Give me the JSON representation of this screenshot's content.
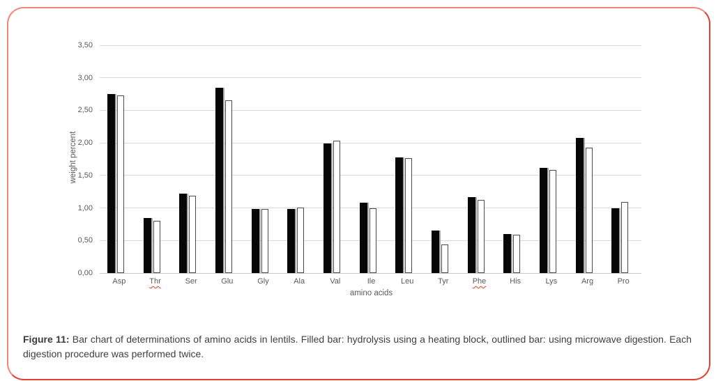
{
  "figure": {
    "caption_label": "Figure 11:",
    "caption_text": " Bar chart of determinations of amino acids in lentils. Filled bar: hydrolysis using a heating block, outlined bar: using microwave digestion. Each digestion procedure was performed twice."
  },
  "colors": {
    "frame_border_top_left": "#f2857a",
    "frame_border_bottom_right": "#e2402e",
    "filled_bar": "#070707",
    "outlined_bar_border": "#4a4a4a",
    "replicate_sliver": "#a8a8a8",
    "gridline": "#d9d9d9",
    "axis_text": "#595959",
    "caption_text": "#3f3f3f",
    "spellcheck_underline": "#e0392e"
  },
  "chart_data": {
    "type": "bar",
    "title": "",
    "xlabel": "amino acids",
    "ylabel": "weight percent",
    "categories": [
      "Asp",
      "Thr",
      "Ser",
      "Glu",
      "Gly",
      "Ala",
      "Val",
      "Ile",
      "Leu",
      "Tyr",
      "Phe",
      "His",
      "Lys",
      "Arg",
      "Pro"
    ],
    "series": [
      {
        "name": "hydrolysis using a heating block (filled bar)",
        "values": [
          2.75,
          0.85,
          1.22,
          2.85,
          0.98,
          0.98,
          1.99,
          1.08,
          1.78,
          0.65,
          1.17,
          0.6,
          1.62,
          2.08,
          1.0
        ]
      },
      {
        "name": "microwave digestion (outlined bar)",
        "values": [
          2.71,
          0.78,
          1.17,
          2.63,
          0.96,
          0.99,
          2.01,
          0.97,
          1.75,
          0.42,
          1.1,
          0.57,
          1.56,
          1.91,
          1.07
        ]
      }
    ],
    "ylim": [
      0,
      3.5
    ],
    "ytick_step": 0.5,
    "ytick_labels": [
      "0,00",
      "0,50",
      "1,00",
      "1,50",
      "2,00",
      "2,50",
      "3,00",
      "3,50"
    ],
    "grid": "horizontal",
    "legend_position": "none",
    "spellchecked_categories": [
      "Thr",
      "Phe"
    ]
  }
}
